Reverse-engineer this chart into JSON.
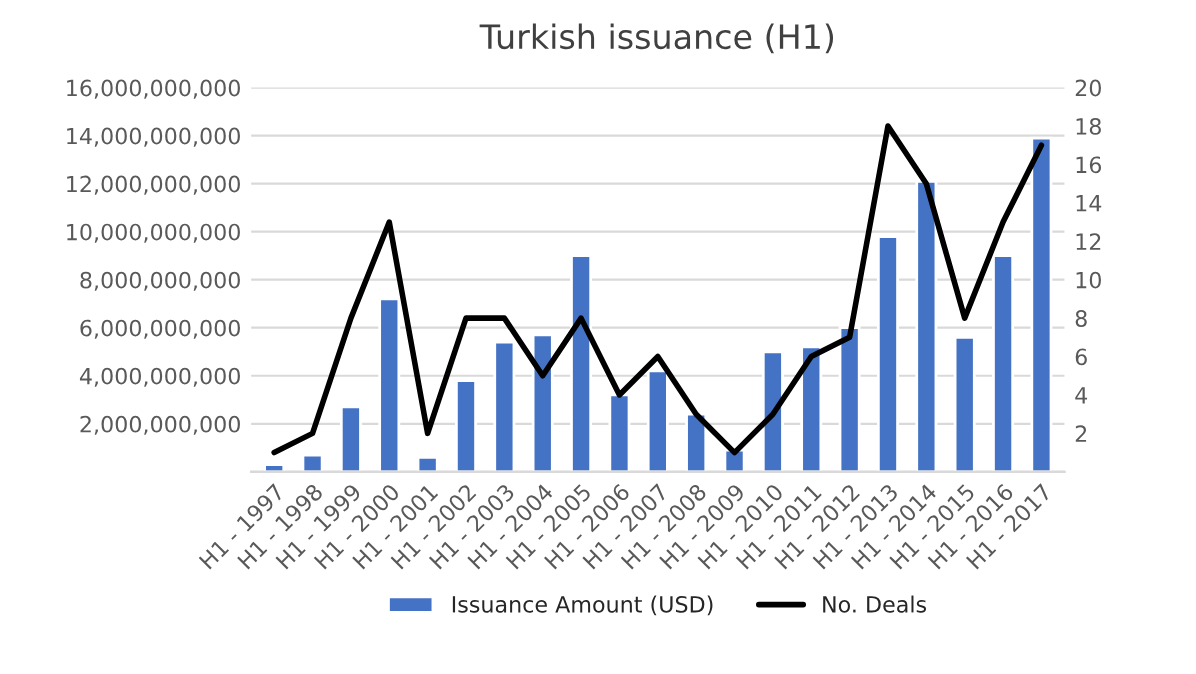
{
  "chart_data": {
    "type": "bar",
    "title": "Turkish issuance (H1)",
    "categories": [
      "H1 - 1997",
      "H1 - 1998",
      "H1 - 1999",
      "H1 - 2000",
      "H1 - 2001",
      "H1 - 2002",
      "H1 - 2003",
      "H1 - 2004",
      "H1 - 2005",
      "H1 - 2006",
      "H1 - 2007",
      "H1 - 2008",
      "H1 - 2009",
      "H1 - 2010",
      "H1 - 2011",
      "H1 - 2012",
      "H1 - 2013",
      "H1 - 2014",
      "H1 - 2015",
      "H1 - 2016",
      "H1 - 2017"
    ],
    "series": [
      {
        "name": "Issuance Amount (USD)",
        "color": "#4472c4",
        "values": [
          300000000,
          700000000,
          2700000000,
          7200000000,
          600000000,
          3800000000,
          5400000000,
          5700000000,
          9000000000,
          3200000000,
          4200000000,
          2400000000,
          900000000,
          5000000000,
          5200000000,
          6000000000,
          9800000000,
          12100000000,
          5600000000,
          9000000000,
          13900000000
        ]
      },
      {
        "name": "No. Deals",
        "type": "line",
        "axis": "y2",
        "color": "#000000",
        "values": [
          1,
          2,
          8,
          13,
          2,
          8,
          8,
          5,
          8,
          4,
          6,
          3,
          1,
          3,
          6,
          7,
          18,
          15,
          8,
          13,
          17
        ]
      }
    ],
    "ylim": [
      0,
      16000000000
    ],
    "yticks": [
      {
        "value": 0,
        "label": null
      },
      {
        "value": 2000000000,
        "label": "2,000,000,000"
      },
      {
        "value": 4000000000,
        "label": "4,000,000,000"
      },
      {
        "value": 6000000000,
        "label": "6,000,000,000"
      },
      {
        "value": 8000000000,
        "label": "8,000,000,000"
      },
      {
        "value": 10000000000,
        "label": "10,000,000,000"
      },
      {
        "value": 12000000000,
        "label": "12,000,000,000"
      },
      {
        "value": 14000000000,
        "label": "14,000,000,000"
      },
      {
        "value": 16000000000,
        "label": "16,000,000,000"
      }
    ],
    "y2lim": [
      0,
      20
    ],
    "y2ticks": [
      {
        "value": 0,
        "label": null
      },
      2,
      4,
      6,
      8,
      10,
      12,
      14,
      16,
      18,
      20
    ],
    "grid": "y",
    "legend": "bottom",
    "marker": "none",
    "line_style": "solid"
  }
}
